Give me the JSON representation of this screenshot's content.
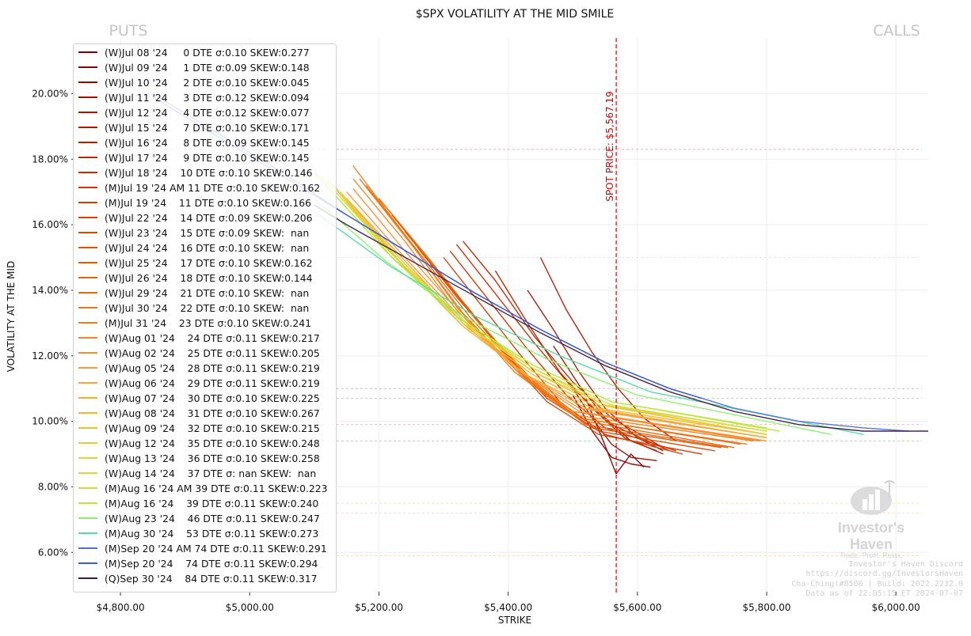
{
  "chart_data": {
    "type": "line",
    "title": "$SPX VOLATILITY AT THE MID SMILE",
    "xlabel": "STRIKE",
    "ylabel": "VOLATILITY AT THE MID",
    "corner_left": "PUTS",
    "corner_right": "CALLS",
    "spot_label": "SPOT PRICE: $5,567.19",
    "spot": 5567.19,
    "xlim": [
      4730,
      6050
    ],
    "ylim": [
      0.048,
      0.217
    ],
    "xticks": [
      4800,
      5000,
      5200,
      5400,
      5600,
      5800,
      6000
    ],
    "xtick_labels": [
      "$4,800.00",
      "$5,000.00",
      "$5,200.00",
      "$5,400.00",
      "$5,600.00",
      "$5,800.00",
      "$6,000.00"
    ],
    "yticks": [
      0.06,
      0.08,
      0.1,
      0.12,
      0.14,
      0.16,
      0.18,
      0.2
    ],
    "ytick_labels": [
      "6.00%",
      "8.00%",
      "10.00%",
      "12.00%",
      "14.00%",
      "16.00%",
      "18.00%",
      "20.00%"
    ],
    "hlines": [
      0.183,
      0.11,
      0.107,
      0.099,
      0.094,
      0.15,
      0.075,
      0.072,
      0.059
    ],
    "grid": true,
    "legend_position": "upper-left",
    "series": [
      {
        "label": "(W)Jul 08 '24     0 DTE σ:0.10 SKEW:0.277",
        "color": "#7f0000",
        "x": [
          5520,
          5545,
          5567,
          5590,
          5610
        ],
        "y": [
          0.107,
          0.095,
          0.084,
          0.09,
          0.086
        ]
      },
      {
        "label": "(W)Jul 09 '24     1 DTE σ:0.09 SKEW:0.148",
        "color": "#8b0000",
        "x": [
          5500,
          5530,
          5560,
          5590,
          5620
        ],
        "y": [
          0.108,
          0.097,
          0.089,
          0.087,
          0.086
        ]
      },
      {
        "label": "(W)Jul 10 '24     2 DTE σ:0.10 SKEW:0.045",
        "color": "#960a00",
        "x": [
          5500,
          5530,
          5560,
          5590,
          5630
        ],
        "y": [
          0.11,
          0.101,
          0.093,
          0.089,
          0.088
        ]
      },
      {
        "label": "(W)Jul 11 '24     3 DTE σ:0.12 SKEW:0.094",
        "color": "#a01000",
        "x": [
          5470,
          5510,
          5550,
          5590,
          5630
        ],
        "y": [
          0.123,
          0.111,
          0.101,
          0.094,
          0.091
        ]
      },
      {
        "label": "(W)Jul 12 '24     4 DTE σ:0.12 SKEW:0.077",
        "color": "#a51500",
        "x": [
          5430,
          5470,
          5510,
          5550,
          5600,
          5640
        ],
        "y": [
          0.14,
          0.128,
          0.115,
          0.104,
          0.095,
          0.091
        ]
      },
      {
        "label": "(W)Jul 15 '24     7 DTE σ:0.10 SKEW:0.171",
        "color": "#ad1a00",
        "x": [
          5450,
          5490,
          5530,
          5570,
          5610,
          5660
        ],
        "y": [
          0.15,
          0.134,
          0.121,
          0.11,
          0.101,
          0.094
        ]
      },
      {
        "label": "(W)Jul 16 '24     8 DTE σ:0.09 SKEW:0.145",
        "color": "#b52000",
        "x": [
          5380,
          5430,
          5480,
          5530,
          5580,
          5640
        ],
        "y": [
          0.146,
          0.13,
          0.115,
          0.104,
          0.095,
          0.09
        ]
      },
      {
        "label": "(W)Jul 17 '24     9 DTE σ:0.10 SKEW:0.145",
        "color": "#bc2600",
        "x": [
          5330,
          5380,
          5440,
          5500,
          5560,
          5640
        ],
        "y": [
          0.155,
          0.143,
          0.126,
          0.112,
          0.101,
          0.092
        ]
      },
      {
        "label": "(W)Jul 18 '24    10 DTE σ:0.10 SKEW:0.146",
        "color": "#c42c00",
        "x": [
          5320,
          5380,
          5440,
          5500,
          5560,
          5650
        ],
        "y": [
          0.154,
          0.139,
          0.124,
          0.11,
          0.099,
          0.091
        ]
      },
      {
        "label": "(M)Jul 19 '24 AM 11 DTE σ:0.10 SKEW:0.162",
        "color": "#cb3300",
        "x": [
          5310,
          5370,
          5430,
          5490,
          5550,
          5660
        ],
        "y": [
          0.152,
          0.137,
          0.122,
          0.108,
          0.098,
          0.091
        ]
      },
      {
        "label": "(M)Jul 19 '24    11 DTE σ:0.10 SKEW:0.166",
        "color": "#d13a00",
        "x": [
          5300,
          5360,
          5420,
          5480,
          5550,
          5670
        ],
        "y": [
          0.15,
          0.135,
          0.12,
          0.106,
          0.096,
          0.09
        ]
      },
      {
        "label": "(W)Jul 22 '24    14 DTE σ:0.09 SKEW:0.206",
        "color": "#d74200",
        "x": [
          5280,
          5340,
          5400,
          5460,
          5540,
          5700
        ],
        "y": [
          0.148,
          0.134,
          0.119,
          0.106,
          0.096,
          0.09
        ]
      },
      {
        "label": "(W)Jul 23 '24    15 DTE σ:0.09 SKEW:  nan",
        "color": "#dc4a00",
        "x": [
          5260,
          5320,
          5390,
          5460,
          5540,
          5720
        ],
        "y": [
          0.153,
          0.138,
          0.122,
          0.107,
          0.097,
          0.091
        ]
      },
      {
        "label": "(W)Jul 24 '24    16 DTE σ:0.10 SKEW:  nan",
        "color": "#e05200",
        "x": [
          5240,
          5310,
          5380,
          5450,
          5530,
          5730
        ],
        "y": [
          0.158,
          0.141,
          0.124,
          0.109,
          0.098,
          0.092
        ]
      },
      {
        "label": "(W)Jul 25 '24    17 DTE σ:0.10 SKEW:0.162",
        "color": "#e45a00",
        "x": [
          5220,
          5290,
          5370,
          5440,
          5520,
          5740
        ],
        "y": [
          0.163,
          0.146,
          0.127,
          0.111,
          0.099,
          0.092
        ]
      },
      {
        "label": "(W)Jul 26 '24    18 DTE σ:0.10 SKEW:0.144",
        "color": "#e86200",
        "x": [
          5200,
          5280,
          5360,
          5440,
          5520,
          5750
        ],
        "y": [
          0.168,
          0.149,
          0.129,
          0.112,
          0.1,
          0.092
        ]
      },
      {
        "label": "(W)Jul 29 '24    21 DTE σ:0.10 SKEW:  nan",
        "color": "#eb6b08",
        "x": [
          5180,
          5260,
          5340,
          5430,
          5510,
          5760
        ],
        "y": [
          0.172,
          0.152,
          0.132,
          0.113,
          0.101,
          0.093
        ]
      },
      {
        "label": "(W)Jul 30 '24    22 DTE σ:0.10 SKEW:  nan",
        "color": "#ee7410",
        "x": [
          5170,
          5250,
          5330,
          5420,
          5510,
          5770
        ],
        "y": [
          0.174,
          0.154,
          0.133,
          0.114,
          0.101,
          0.093
        ]
      },
      {
        "label": "(M)Jul 31 '24    23 DTE σ:0.10 SKEW:0.241",
        "color": "#f07d18",
        "x": [
          5160,
          5240,
          5320,
          5410,
          5500,
          5780
        ],
        "y": [
          0.178,
          0.157,
          0.135,
          0.115,
          0.102,
          0.094
        ]
      },
      {
        "label": "(W)Aug 01 '24    24 DTE σ:0.11 SKEW:0.217",
        "color": "#f28620",
        "x": [
          5160,
          5240,
          5320,
          5410,
          5500,
          5790
        ],
        "y": [
          0.174,
          0.155,
          0.134,
          0.116,
          0.103,
          0.094
        ]
      },
      {
        "label": "(W)Aug 02 '24    25 DTE σ:0.11 SKEW:0.205",
        "color": "#f49030",
        "x": [
          5160,
          5240,
          5330,
          5420,
          5510,
          5800
        ],
        "y": [
          0.171,
          0.152,
          0.132,
          0.115,
          0.103,
          0.094
        ]
      },
      {
        "label": "(W)Aug 05 '24    28 DTE σ:0.11 SKEW:0.219",
        "color": "#f59a3c",
        "x": [
          5150,
          5240,
          5330,
          5420,
          5510,
          5800
        ],
        "y": [
          0.17,
          0.15,
          0.131,
          0.115,
          0.104,
          0.095
        ]
      },
      {
        "label": "(W)Aug 06 '24    29 DTE σ:0.11 SKEW:0.219",
        "color": "#f5a33a",
        "x": [
          5150,
          5240,
          5330,
          5420,
          5520,
          5800
        ],
        "y": [
          0.168,
          0.149,
          0.13,
          0.115,
          0.104,
          0.095
        ]
      },
      {
        "label": "(W)Aug 07 '24    30 DTE σ:0.10 SKEW:0.225",
        "color": "#f5ad30",
        "x": [
          5150,
          5240,
          5330,
          5430,
          5530,
          5800
        ],
        "y": [
          0.167,
          0.147,
          0.129,
          0.114,
          0.104,
          0.095
        ]
      },
      {
        "label": "(W)Aug 08 '24    31 DTE σ:0.10 SKEW:0.267",
        "color": "#f3b828",
        "x": [
          5150,
          5240,
          5340,
          5440,
          5540,
          5800
        ],
        "y": [
          0.168,
          0.147,
          0.128,
          0.114,
          0.104,
          0.096
        ]
      },
      {
        "label": "(W)Aug 09 '24    32 DTE σ:0.10 SKEW:0.215",
        "color": "#eec22c",
        "x": [
          5140,
          5240,
          5340,
          5440,
          5540,
          5800
        ],
        "y": [
          0.17,
          0.148,
          0.129,
          0.115,
          0.105,
          0.096
        ]
      },
      {
        "label": "(W)Aug 12 '24    35 DTE σ:0.10 SKEW:0.248",
        "color": "#e6cb34",
        "x": [
          5130,
          5230,
          5330,
          5440,
          5550,
          5800
        ],
        "y": [
          0.172,
          0.149,
          0.13,
          0.115,
          0.105,
          0.096
        ]
      },
      {
        "label": "(W)Aug 13 '24    36 DTE σ:0.10 SKEW:0.258",
        "color": "#dcd43c",
        "x": [
          5120,
          5220,
          5330,
          5440,
          5550,
          5800
        ],
        "y": [
          0.174,
          0.15,
          0.13,
          0.116,
          0.105,
          0.097
        ]
      },
      {
        "label": "(W)Aug 14 '24    37 DTE σ: nan SKEW:  nan",
        "color": "#d2dc3e",
        "x": [
          5110,
          5220,
          5330,
          5440,
          5560,
          5800
        ],
        "y": [
          0.175,
          0.151,
          0.131,
          0.116,
          0.105,
          0.097
        ]
      },
      {
        "label": "(M)Aug 16 '24 AM 39 DTE σ:0.11 SKEW:0.223",
        "color": "#c6e23e",
        "x": [
          5100,
          5210,
          5320,
          5440,
          5560,
          5800
        ],
        "y": [
          0.176,
          0.152,
          0.132,
          0.117,
          0.106,
          0.098
        ]
      },
      {
        "label": "(M)Aug 16 '24    39 DTE σ:0.11 SKEW:0.240",
        "color": "#b8e83c",
        "x": [
          5100,
          5210,
          5320,
          5440,
          5560,
          5820
        ],
        "y": [
          0.176,
          0.152,
          0.132,
          0.117,
          0.106,
          0.097
        ]
      },
      {
        "label": "(W)Aug 23 '24    46 DTE σ:0.11 SKEW:0.247",
        "color": "#8cf06c",
        "x": [
          5100,
          5210,
          5330,
          5460,
          5600,
          5900
        ],
        "y": [
          0.168,
          0.149,
          0.132,
          0.119,
          0.108,
          0.096
        ]
      },
      {
        "label": "(M)Aug 30 '24    53 DTE σ:0.11 SKEW:0.273",
        "color": "#50dca6",
        "x": [
          5100,
          5220,
          5350,
          5480,
          5620,
          5950
        ],
        "y": [
          0.164,
          0.147,
          0.132,
          0.12,
          0.109,
          0.096
        ]
      },
      {
        "label": "(M)Sep 20 '24 AM 74 DTE σ:0.11 SKEW:0.291",
        "color": "#4a6fe3",
        "x": [
          4850,
          4950,
          5050,
          5150,
          5250,
          5350,
          5450,
          5550,
          5650,
          5750,
          5850,
          5950,
          6020
        ],
        "y": [
          0.2,
          0.188,
          0.176,
          0.163,
          0.151,
          0.139,
          0.128,
          0.118,
          0.11,
          0.104,
          0.1,
          0.098,
          0.097
        ]
      },
      {
        "label": "(M)Sep 20 '24    74 DTE σ:0.11 SKEW:0.294",
        "color": "#3a5bd6",
        "x": [
          4850,
          4950,
          5050,
          5150,
          5250,
          5350,
          5450,
          5550,
          5650,
          5700
        ],
        "y": [
          0.199,
          0.187,
          0.175,
          0.163,
          0.151,
          0.139,
          0.128,
          0.118,
          0.11,
          0.107
        ]
      },
      {
        "label": "(Q)Sep 30 '24    84 DTE σ:0.11 SKEW:0.317",
        "color": "#3b1a4a",
        "x": [
          5100,
          5150,
          5250,
          5350,
          5450,
          5550,
          5650,
          5750,
          5850,
          5950,
          6050
        ],
        "y": [
          0.166,
          0.16,
          0.149,
          0.138,
          0.127,
          0.117,
          0.109,
          0.103,
          0.099,
          0.097,
          0.097
        ]
      }
    ]
  },
  "watermark_lines": [
    "Investor's Haven Discord",
    "https://discord.gg/InvestorsHaven",
    "Cha-Ching!#8500 | Build: 2022.2232.0",
    "Data as of 22:05:15 ET 2024-07-07"
  ],
  "logo": {
    "name": "Investor's Haven",
    "tagline": "Trade. Profit. Relax."
  }
}
